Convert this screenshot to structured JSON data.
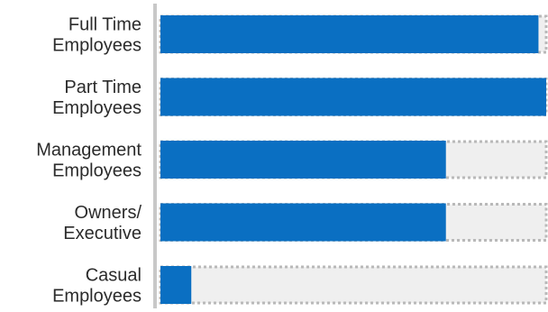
{
  "chart_data": {
    "type": "bar",
    "orientation": "horizontal",
    "title": "",
    "xlabel": "",
    "ylabel": "",
    "categories": [
      [
        "Full Time",
        "Employees"
      ],
      [
        "Part Time",
        "Employees"
      ],
      [
        "Management",
        "Employees"
      ],
      [
        "Owners/",
        "Executive"
      ],
      [
        "Casual",
        "Employees"
      ]
    ],
    "values": [
      98,
      100,
      74,
      74,
      8
    ],
    "xlim": [
      0,
      100
    ],
    "grid": false,
    "legend": "none",
    "colors": {
      "bar": "#0a6fc2",
      "track": "#efefef",
      "track_border": "#b9b9b9",
      "axis": "#c8c8c8",
      "label": "#2b2b2b"
    }
  }
}
